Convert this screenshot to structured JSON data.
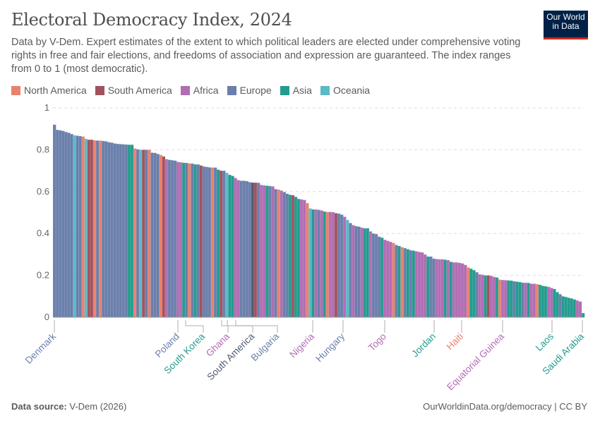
{
  "header": {
    "title": "Electoral Democracy Index, 2024",
    "subtitle": "Data by V-Dem. Expert estimates of the extent to which political leaders are elected under comprehensive voting rights in free and fair elections, and freedoms of association and expression are guaranteed. The index ranges from 0 to 1 (most democratic).",
    "logo_text": "Our World in Data"
  },
  "legend": [
    {
      "code": "NA",
      "label": "North America",
      "color": "#e8826f"
    },
    {
      "code": "SA",
      "label": "South America",
      "color": "#a2525d"
    },
    {
      "code": "AF",
      "label": "Africa",
      "color": "#b16db3"
    },
    {
      "code": "EU",
      "label": "Europe",
      "color": "#6a7fab"
    },
    {
      "code": "AS",
      "label": "Asia",
      "color": "#239c8f"
    },
    {
      "code": "OC",
      "label": "Oceania",
      "color": "#5bbac8"
    }
  ],
  "chart_data": {
    "type": "bar",
    "title": "Electoral Democracy Index, 2024",
    "ylim": [
      0,
      1
    ],
    "yticks": [
      "0",
      "0.2",
      "0.4",
      "0.6",
      "0.8",
      "1"
    ],
    "grid": true,
    "legend_position": "top-left",
    "sorted": "descending",
    "aggregate_color": "#4f5d72",
    "values": [
      0.92,
      0.895,
      0.893,
      0.89,
      0.885,
      0.881,
      0.875,
      0.869,
      0.867,
      0.865,
      0.863,
      0.852,
      0.848,
      0.848,
      0.845,
      0.844,
      0.844,
      0.842,
      0.84,
      0.836,
      0.834,
      0.83,
      0.828,
      0.827,
      0.826,
      0.825,
      0.824,
      0.824,
      0.806,
      0.802,
      0.8,
      0.8,
      0.8,
      0.8,
      0.786,
      0.785,
      0.78,
      0.775,
      0.768,
      0.755,
      0.752,
      0.75,
      0.748,
      0.742,
      0.74,
      0.738,
      0.737,
      0.735,
      0.734,
      0.73,
      0.73,
      0.725,
      0.72,
      0.718,
      0.716,
      0.715,
      0.715,
      0.705,
      0.7,
      0.7,
      0.69,
      0.68,
      0.675,
      0.665,
      0.655,
      0.652,
      0.652,
      0.65,
      0.645,
      0.643,
      0.643,
      0.642,
      0.632,
      0.63,
      0.628,
      0.627,
      0.625,
      0.612,
      0.61,
      0.605,
      0.598,
      0.59,
      0.585,
      0.583,
      0.575,
      0.565,
      0.563,
      0.56,
      0.545,
      0.52,
      0.515,
      0.515,
      0.513,
      0.51,
      0.505,
      0.503,
      0.503,
      0.502,
      0.497,
      0.495,
      0.49,
      0.48,
      0.465,
      0.45,
      0.44,
      0.435,
      0.433,
      0.428,
      0.425,
      0.425,
      0.41,
      0.4,
      0.397,
      0.385,
      0.38,
      0.37,
      0.365,
      0.36,
      0.355,
      0.345,
      0.34,
      0.335,
      0.33,
      0.325,
      0.32,
      0.318,
      0.315,
      0.312,
      0.31,
      0.3,
      0.29,
      0.29,
      0.28,
      0.278,
      0.277,
      0.277,
      0.275,
      0.273,
      0.265,
      0.262,
      0.262,
      0.26,
      0.257,
      0.25,
      0.238,
      0.232,
      0.225,
      0.215,
      0.205,
      0.203,
      0.2,
      0.2,
      0.198,
      0.193,
      0.19,
      0.18,
      0.178,
      0.177,
      0.176,
      0.175,
      0.172,
      0.17,
      0.168,
      0.165,
      0.165,
      0.164,
      0.16,
      0.16,
      0.158,
      0.155,
      0.15,
      0.148,
      0.145,
      0.14,
      0.135,
      0.12,
      0.11,
      0.1,
      0.097,
      0.093,
      0.09,
      0.085,
      0.08,
      0.075,
      0.02
    ],
    "regions": [
      "EU",
      "EU",
      "EU",
      "EU",
      "EU",
      "EU",
      "EU",
      "OC",
      "EU",
      "EU",
      "NA",
      "OC",
      "SA",
      "SA",
      "NA",
      "EU",
      "NA",
      "EU",
      "EU",
      "EU",
      "EU",
      "EU",
      "EU",
      "EU",
      "EU",
      "EU",
      "AS",
      "AS",
      "NA",
      "EU",
      "OC",
      "SA",
      "EU",
      "NA",
      "EU",
      "EU",
      "EU",
      "NA",
      "SA",
      "AF",
      "EU",
      "EU",
      "EU",
      "AF",
      "AF",
      "AS",
      "EU",
      "NA",
      "EU",
      "AS",
      "EU",
      "SA",
      "EU",
      "EU",
      "EU",
      "NA",
      "EU",
      "AS",
      "SA",
      "EU",
      "OC",
      "AS",
      "AS",
      "AF",
      "AF",
      "EU",
      "EU",
      "EU",
      "EU",
      "AG",
      "SA",
      "EU",
      "AF",
      "AF",
      "AS",
      "EU",
      "AF",
      "EU",
      "NA",
      "AF",
      "EU",
      "EU",
      "AS",
      "SA",
      "AS",
      "AS",
      "AF",
      "AF",
      "NA",
      "OC",
      "AS",
      "AF",
      "EU",
      "AF",
      "AS",
      "NA",
      "AF",
      "AF",
      "SA",
      "EU",
      "EU",
      "AF",
      "OC",
      "EU",
      "AF",
      "EU",
      "EU",
      "AF",
      "AS",
      "AS",
      "AF",
      "EU",
      "EU",
      "EU",
      "AS",
      "AF",
      "AF",
      "AF",
      "NA",
      "EU",
      "AS",
      "NA",
      "EU",
      "AS",
      "EU",
      "AS",
      "AF",
      "AF",
      "AF",
      "AF",
      "AS",
      "EU",
      "EU",
      "AF",
      "AF",
      "AF",
      "AS",
      "AF",
      "AS",
      "AF",
      "AF",
      "AF",
      "AF",
      "AF",
      "NA",
      "AS",
      "AS",
      "EU",
      "AF",
      "AF",
      "AS",
      "SA",
      "AF",
      "AF",
      "AS",
      "NA",
      "AF",
      "AF",
      "AS",
      "AS",
      "EU",
      "AS",
      "AS",
      "EU",
      "AF",
      "AS",
      "AF",
      "AF",
      "NA",
      "AS",
      "AS",
      "AS",
      "AF",
      "AF",
      "AS",
      "AS",
      "EU",
      "AS",
      "AS",
      "AS",
      "AS",
      "AS",
      "AF",
      "AF",
      "AS"
    ],
    "labeled_bars": [
      {
        "name": "Denmark",
        "region": "EU"
      },
      {
        "name": "Poland",
        "region": "EU"
      },
      {
        "name": "South Korea",
        "region": "AS"
      },
      {
        "name": "Ghana",
        "region": "AF"
      },
      {
        "name": "South America",
        "region": "AG"
      },
      {
        "name": "Bulgaria",
        "region": "EU"
      },
      {
        "name": "Nigeria",
        "region": "AF"
      },
      {
        "name": "Hungary",
        "region": "EU"
      },
      {
        "name": "Togo",
        "region": "AF"
      },
      {
        "name": "Jordan",
        "region": "AS"
      },
      {
        "name": "Haiti",
        "region": "NA"
      },
      {
        "name": "Equatorial Guinea",
        "region": "AF"
      },
      {
        "name": "Laos",
        "region": "AS"
      },
      {
        "name": "Saudi Arabia",
        "region": "AS"
      }
    ]
  },
  "footer": {
    "source_label": "Data source:",
    "source_value": "V-Dem (2026)",
    "credit": "OurWorldinData.org/democracy | CC BY"
  }
}
